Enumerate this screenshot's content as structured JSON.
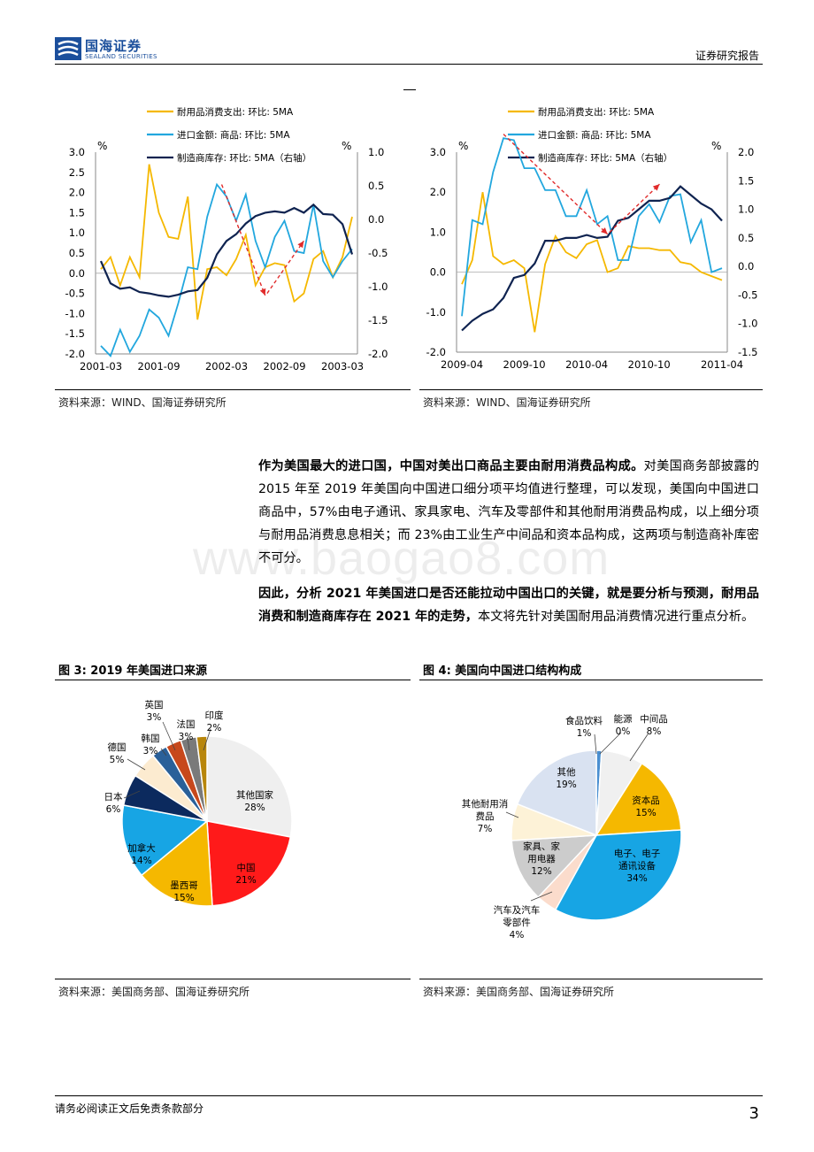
{
  "header": {
    "logo_cn": "国海证券",
    "logo_en": "SEALAND SECURITIES",
    "right_text": "证券研究报告"
  },
  "colors": {
    "yellow": "#f5b800",
    "cyan": "#22a7de",
    "navy": "#0f2350",
    "red": "#e12b2b",
    "brand": "#1b4f9c"
  },
  "chart_left_source": "资料来源：WIND、国海证券研究所",
  "chart_right_source": "资料来源：WIND、国海证券研究所",
  "chart_data": [
    {
      "type": "line",
      "legend": [
        "耐用品消费支出: 环比: 5MA",
        "进口金额: 商品: 环比: 5MA",
        "制造商库存: 环比: 5MA（右轴）"
      ],
      "left_unit": "%",
      "right_unit": "%",
      "ylim": [
        -2.0,
        3.0
      ],
      "y2lim": [
        -2.0,
        1.0
      ],
      "yticks": [
        "3.0",
        "2.5",
        "2.0",
        "1.5",
        "1.0",
        "0.5",
        "0.0",
        "-0.5",
        "-1.0",
        "-1.5",
        "-2.0"
      ],
      "y2ticks": [
        "1.0",
        "0.5",
        "0.0",
        "-0.5",
        "-1.0",
        "-1.5",
        "-2.0"
      ],
      "xticks": [
        "2001-03",
        "2001-09",
        "2002-03",
        "2002-09",
        "2003-03"
      ],
      "series": [
        {
          "name": "耐用品消费支出: 环比: 5MA",
          "values": [
            0.1,
            0.4,
            -0.3,
            0.4,
            -0.1,
            2.7,
            1.5,
            0.9,
            0.85,
            1.9,
            -1.15,
            0.1,
            0.15,
            -0.05,
            0.35,
            0.95,
            -0.3,
            0.15,
            0.25,
            0.2,
            -0.7,
            -0.5,
            0.35,
            0.55,
            -0.1,
            0.4,
            1.4
          ]
        },
        {
          "name": "进口金额: 商品: 环比: 5MA",
          "values": [
            -1.8,
            -2.05,
            -1.4,
            -1.95,
            -1.55,
            -0.9,
            -1.1,
            -1.55,
            -0.75,
            0.15,
            0.1,
            1.4,
            2.2,
            1.9,
            1.3,
            1.95,
            0.8,
            0.15,
            0.9,
            1.3,
            0.55,
            0.5,
            1.7,
            0.3,
            -0.1,
            0.3,
            0.6
          ]
        },
        {
          "name": "制造商库存: 环比: 5MA（右轴）",
          "axis": "right",
          "values": [
            -0.62,
            -0.95,
            -1.03,
            -1.01,
            -1.08,
            -1.1,
            -1.13,
            -1.15,
            -1.12,
            -1.07,
            -1.05,
            -0.87,
            -0.52,
            -0.32,
            -0.22,
            -0.06,
            0.05,
            0.1,
            0.12,
            0.1,
            0.17,
            0.1,
            0.22,
            0.08,
            0.07,
            -0.07,
            -0.52
          ]
        }
      ]
    },
    {
      "type": "line",
      "legend": [
        "耐用品消费支出: 环比: 5MA",
        "进口金额: 商品: 环比: 5MA",
        "制造商库存: 环比: 5MA（右轴）"
      ],
      "left_unit": "%",
      "right_unit": "%",
      "ylim": [
        -2.0,
        3.0
      ],
      "y2lim": [
        -1.5,
        2.0
      ],
      "yticks": [
        "3.0",
        "2.0",
        "1.0",
        "0.0",
        "-1.0",
        "-2.0"
      ],
      "y2ticks": [
        "2.0",
        "1.5",
        "1.0",
        "0.5",
        "0.0",
        "-0.5",
        "-1.0",
        "-1.5"
      ],
      "xticks": [
        "2009-04",
        "2009-10",
        "2010-04",
        "2010-10",
        "2011-04"
      ],
      "series": [
        {
          "name": "耐用品消费支出: 环比: 5MA",
          "values": [
            -0.3,
            0.3,
            2.0,
            0.4,
            0.2,
            0.3,
            0.1,
            -1.5,
            0.2,
            0.9,
            0.5,
            0.35,
            0.7,
            0.8,
            0.0,
            0.1,
            0.65,
            0.6,
            0.6,
            0.55,
            0.55,
            0.25,
            0.2,
            0.0,
            -0.1,
            -0.2
          ]
        },
        {
          "name": "进口金额: 商品: 环比: 5MA",
          "values": [
            -1.1,
            1.3,
            1.2,
            2.5,
            3.35,
            3.3,
            2.6,
            2.6,
            2.05,
            2.05,
            1.4,
            1.4,
            2.05,
            1.2,
            1.4,
            0.3,
            0.3,
            1.4,
            1.7,
            1.25,
            1.9,
            1.95,
            0.75,
            1.3,
            0.0,
            0.1
          ]
        },
        {
          "name": "制造商库存: 环比: 5MA（右轴）",
          "axis": "right",
          "values": [
            -1.12,
            -0.95,
            -0.83,
            -0.75,
            -0.55,
            -0.2,
            -0.15,
            0.05,
            0.45,
            0.45,
            0.5,
            0.5,
            0.55,
            0.5,
            0.52,
            0.8,
            0.85,
            1.0,
            1.15,
            1.15,
            1.2,
            1.4,
            1.25,
            1.1,
            1.0,
            0.8
          ]
        }
      ]
    },
    {
      "type": "pie",
      "categories": [
        "其他国家",
        "中国",
        "墨西哥",
        "加拿大",
        "日本",
        "德国",
        "韩国",
        "英国",
        "法国",
        "印度"
      ],
      "values": [
        28,
        21,
        15,
        14,
        6,
        5,
        3,
        3,
        3,
        2
      ],
      "colors": [
        "#efefef",
        "#ff1a1a",
        "#f5b800",
        "#17a5e4",
        "#0c2a5e",
        "#fcebd0",
        "#2a6099",
        "#c7481c",
        "#7a7a7a",
        "#b8860b"
      ]
    },
    {
      "type": "pie",
      "categories": [
        "食品饮料",
        "能源",
        "中间品",
        "资本品",
        "电子、电子通讯设备",
        "汽车及汽车零部件",
        "家具、家用电器",
        "其他耐用消费品",
        "其他"
      ],
      "values": [
        1,
        0,
        8,
        15,
        34,
        4,
        12,
        7,
        19
      ],
      "colors": [
        "#4a8fd1",
        "#999999",
        "#f0f0f0",
        "#f5b800",
        "#17a5e4",
        "#fbdccc",
        "#cccccc",
        "#fdf2d7",
        "#d9e2f1"
      ]
    }
  ],
  "paragraph1": {
    "bold": "作为美国最大的进口国，中国对美出口商品主要由耐用消费品构成。",
    "text": "对美国商务部披露的 2015 年至 2019 年美国向中国进口细分项平均值进行整理，可以发现，美国向中国进口商品中，57%由电子通讯、家具家电、汽车及零部件和其他耐用消费品构成，以上细分项与耐用品消费息息相关；而 23%由工业生产中间品和资本品构成，这两项与制造商补库密不可分。"
  },
  "paragraph2": {
    "bold": "因此，分析 2021 年美国进口是否还能拉动中国出口的关键，就是要分析与预测，耐用品消费和制造商库存在 2021 年的走势，",
    "text": "本文将先针对美国耐用品消费情况进行重点分析。"
  },
  "watermark": "www.baogao8.com",
  "fig3": {
    "title": "图 3:  2019 年美国进口来源",
    "source": "资料来源：美国商务部、国海证券研究所",
    "labels": [
      {
        "name": "其他国家",
        "pct": "28%"
      },
      {
        "name": "中国",
        "pct": "21%"
      },
      {
        "name": "墨西哥",
        "pct": "15%"
      },
      {
        "name": "加拿大",
        "pct": "14%"
      },
      {
        "name": "日本",
        "pct": "6%"
      },
      {
        "name": "德国",
        "pct": "5%"
      },
      {
        "name": "韩国",
        "pct": "3%"
      },
      {
        "name": "英国",
        "pct": "3%"
      },
      {
        "name": "法国",
        "pct": "3%"
      },
      {
        "name": "印度",
        "pct": "2%"
      }
    ]
  },
  "fig4": {
    "title": "图 4:  美国向中国进口结构构成",
    "source": "资料来源：美国商务部、国海证券研究所",
    "labels": [
      {
        "name": "食品饮料",
        "pct": "1%"
      },
      {
        "name": "能源",
        "pct": "0%"
      },
      {
        "name": "中间品",
        "pct": "8%"
      },
      {
        "name": "资本品",
        "pct": "15%"
      },
      {
        "name1": "电子、电子",
        "name2": "通讯设备",
        "pct": "34%"
      },
      {
        "name1": "汽车及汽车",
        "name2": "零部件",
        "pct": "4%"
      },
      {
        "name1": "家具、家",
        "name2": "用电器",
        "pct": "12%"
      },
      {
        "name1": "其他耐用消",
        "name2": "费品",
        "pct": "7%"
      },
      {
        "name": "其他",
        "pct": "19%"
      }
    ]
  },
  "footer": {
    "disclaimer": "请务必阅读正文后免责条款部分",
    "page": "3"
  }
}
